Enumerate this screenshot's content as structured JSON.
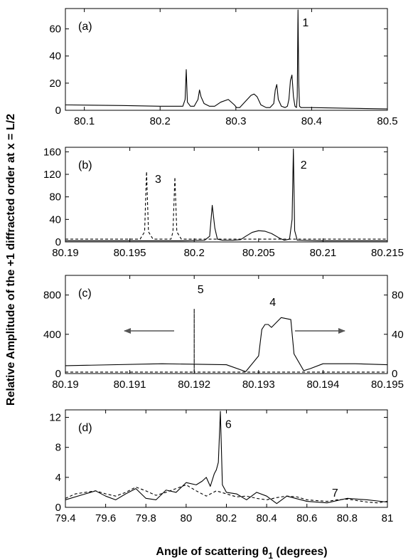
{
  "figure": {
    "ylabel": "Relative Amplitude of the +1 diffracted order at x = L/2",
    "xlabel": "Angle of scattering θ",
    "xlabel_sub": "1",
    "xlabel_tail": " (degrees)"
  },
  "chart_data": [
    {
      "panel": "(a)",
      "type": "line",
      "xlim": [
        80.075,
        80.5
      ],
      "ylim": [
        0,
        75
      ],
      "xticks": [
        80.1,
        80.2,
        80.3,
        80.4,
        80.5
      ],
      "xticklabels": [
        "80.1",
        "80.2",
        "80.3",
        "80.4",
        "80.5"
      ],
      "yticks": [
        0,
        20,
        40,
        60
      ],
      "yticklabels": [
        "0",
        "20",
        "40",
        "60"
      ],
      "annotations": [
        {
          "text": "1",
          "x": 80.392,
          "y": 62
        }
      ],
      "series": [
        {
          "style": "solid",
          "x": [
            80.075,
            80.15,
            80.2,
            80.23,
            80.233,
            80.2345,
            80.236,
            80.24,
            80.245,
            80.25,
            80.252,
            80.254,
            80.258,
            80.265,
            80.272,
            80.28,
            80.29,
            80.298,
            80.301,
            80.305,
            80.31,
            80.315,
            80.32,
            80.324,
            80.328,
            80.333,
            80.34,
            80.345,
            80.35,
            80.352,
            80.354,
            80.356,
            80.36,
            80.365,
            80.368,
            80.37,
            80.372,
            80.374,
            80.376,
            80.378,
            80.38,
            80.381,
            80.382,
            80.383,
            80.384,
            80.386,
            80.39,
            80.4,
            80.45,
            80.5
          ],
          "y": [
            4,
            3.5,
            3,
            3,
            8,
            30,
            6,
            3,
            3,
            8,
            15,
            10,
            5,
            3,
            3,
            6,
            8,
            4,
            2,
            2,
            5,
            8,
            11,
            12,
            10,
            4,
            2,
            2,
            5,
            15,
            19,
            8,
            3,
            2,
            3,
            8,
            22,
            26,
            10,
            3,
            2,
            10,
            74,
            20,
            3,
            2,
            2,
            2,
            1.5,
            1
          ]
        }
      ]
    },
    {
      "panel": "(b)",
      "type": "line",
      "xlim": [
        80.19,
        80.215
      ],
      "ylim": [
        0,
        168
      ],
      "xticks": [
        80.19,
        80.195,
        80.2,
        80.205,
        80.21,
        80.215
      ],
      "xticklabels": [
        "80.19",
        "80.195",
        "80.2",
        "80.205",
        "80.21",
        "80.215"
      ],
      "yticks": [
        0,
        40,
        80,
        120,
        160
      ],
      "yticklabels": [
        "0",
        "40",
        "80",
        "120",
        "160"
      ],
      "annotations": [
        {
          "text": "2",
          "x": 80.2085,
          "y": 130
        },
        {
          "text": "3",
          "x": 80.1972,
          "y": 105
        }
      ],
      "series": [
        {
          "style": "solid",
          "x": [
            80.19,
            80.195,
            80.199,
            80.2008,
            80.2012,
            80.2014,
            80.2016,
            80.2018,
            80.2022,
            80.203,
            80.2036,
            80.204,
            80.2045,
            80.205,
            80.2055,
            80.206,
            80.2066,
            80.207,
            80.2074,
            80.2076,
            80.2077,
            80.2078,
            80.208,
            80.21,
            80.215
          ],
          "y": [
            2,
            2,
            2,
            3,
            10,
            65,
            25,
            5,
            3,
            3,
            4,
            10,
            17,
            20,
            19,
            15,
            7,
            3,
            5,
            40,
            165,
            20,
            3,
            2,
            2
          ]
        },
        {
          "style": "dashed",
          "x": [
            80.19,
            80.1958,
            80.19615,
            80.1963,
            80.19645,
            80.1968,
            80.1982,
            80.19835,
            80.1985,
            80.19865,
            80.199,
            80.2,
            80.205,
            80.21,
            80.215
          ],
          "y": [
            5,
            5,
            18,
            125,
            18,
            5,
            5,
            18,
            115,
            18,
            5,
            5,
            5,
            5,
            5
          ]
        }
      ]
    },
    {
      "panel": "(c)",
      "type": "line",
      "xlim": [
        80.19,
        80.195
      ],
      "ylim": [
        0,
        1000
      ],
      "y2lim": [
        0,
        100
      ],
      "xticks": [
        80.19,
        80.191,
        80.192,
        80.193,
        80.194,
        80.195
      ],
      "xticklabels": [
        "80.19",
        "80.191",
        "80.192",
        "80.193",
        "80.194",
        "80.195"
      ],
      "yticks": [
        0,
        400,
        800
      ],
      "yticklabels": [
        "0",
        "400",
        "800"
      ],
      "y2ticks": [
        0,
        40,
        80
      ],
      "y2ticklabels": [
        "0",
        "40",
        "80"
      ],
      "annotations": [
        {
          "text": "5",
          "x": 80.1921,
          "y": 820
        },
        {
          "text": "4",
          "x": 80.19322,
          "y": 690
        }
      ],
      "series": [
        {
          "style": "solid",
          "axis": "right",
          "x": [
            80.19,
            80.1915,
            80.1925,
            80.1928,
            80.193,
            80.19305,
            80.1931,
            80.19315,
            80.1932,
            80.19335,
            80.1935,
            80.19355,
            80.1937,
            80.1938,
            80.194,
            80.1945,
            80.195
          ],
          "y": [
            8,
            10,
            9,
            2,
            18,
            45,
            50,
            50,
            47,
            57,
            55,
            20,
            3,
            5,
            10,
            10,
            9
          ]
        },
        {
          "style": "dashed",
          "axis": "left",
          "x": [
            80.19,
            80.192,
            80.192,
            80.192,
            80.195
          ],
          "y": [
            15,
            15,
            660,
            15,
            15
          ]
        }
      ]
    },
    {
      "panel": "(d)",
      "type": "line",
      "xlim": [
        79.4,
        81
      ],
      "ylim": [
        0,
        13
      ],
      "xticks": [
        79.4,
        79.6,
        79.8,
        80,
        80.2,
        80.4,
        80.6,
        80.8,
        81
      ],
      "xticklabels": [
        "79.4",
        "79.6",
        "79.8",
        "80",
        "80.2",
        "80.4",
        "80.6",
        "80.8",
        "81"
      ],
      "yticks": [
        0,
        4,
        8,
        12
      ],
      "yticklabels": [
        "0",
        "4",
        "8",
        "12"
      ],
      "annotations": [
        {
          "text": "6",
          "x": 80.21,
          "y": 10.6
        },
        {
          "text": "7",
          "x": 80.74,
          "y": 1.4
        }
      ],
      "series": [
        {
          "style": "solid",
          "x": [
            79.4,
            79.5,
            79.55,
            79.6,
            79.65,
            79.7,
            79.75,
            79.8,
            79.85,
            79.9,
            79.95,
            80,
            80.05,
            80.08,
            80.1,
            80.12,
            80.14,
            80.15,
            80.16,
            80.17,
            80.175,
            80.18,
            80.19,
            80.2,
            80.25,
            80.3,
            80.35,
            80.4,
            80.45,
            80.5,
            80.6,
            80.7,
            80.8,
            80.9,
            81
          ],
          "y": [
            1,
            1.8,
            2.2,
            1.5,
            1,
            1.8,
            2.5,
            1.2,
            1,
            2.3,
            2,
            3.3,
            3,
            3.5,
            4,
            2.8,
            4.5,
            5,
            6,
            12.8,
            8,
            3,
            2.5,
            2,
            1.8,
            1,
            2,
            1.5,
            0.5,
            1.5,
            0.8,
            0.6,
            1.2,
            1,
            0.7
          ]
        },
        {
          "style": "dashed",
          "x": [
            79.4,
            79.45,
            79.5,
            79.55,
            79.6,
            79.65,
            79.7,
            79.75,
            79.8,
            79.85,
            79.9,
            79.95,
            80,
            80.05,
            80.1,
            80.15,
            80.2,
            80.25,
            80.3,
            80.35,
            80.4,
            80.45,
            80.5,
            80.55,
            80.6,
            80.65,
            80.7,
            80.75,
            80.8,
            80.85,
            80.9,
            80.95,
            81
          ],
          "y": [
            1.2,
            1.8,
            2,
            2.2,
            1.8,
            1.5,
            2,
            2.7,
            2.2,
            1.6,
            2,
            2.5,
            3,
            2.2,
            1.5,
            2.2,
            1.8,
            1.4,
            1.5,
            1.2,
            1,
            1.3,
            1.5,
            1.4,
            1,
            0.9,
            0.8,
            1,
            1.1,
            0.9,
            0.7,
            0.6,
            0.8
          ]
        }
      ]
    }
  ]
}
